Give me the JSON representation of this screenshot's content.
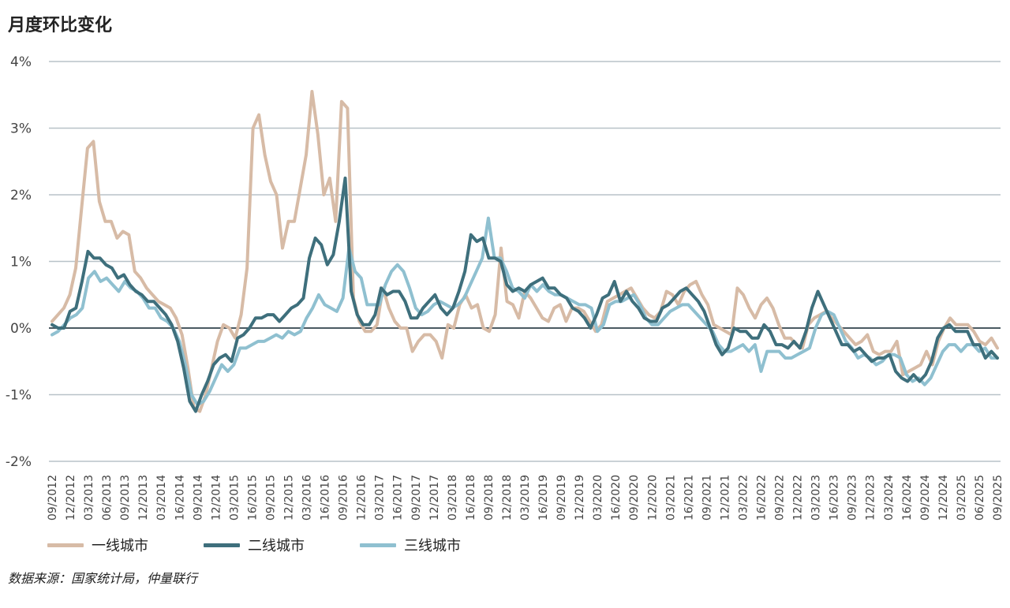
{
  "title": "月度环比变化",
  "source": "数据来源：国家统计局，仲量联行",
  "colors": {
    "grid": "#b8c2c8",
    "zero": "#4a5a62",
    "tier1": "#d7bba6",
    "tier2": "#3e6f7c",
    "tier3": "#8fc0d0"
  },
  "chart_data": {
    "type": "line",
    "title": "月度环比变化",
    "ylim": [
      -2,
      4
    ],
    "yticks": [
      -2,
      -1,
      0,
      1,
      2,
      3,
      4
    ],
    "ytick_labels": [
      "-2%",
      "-1%",
      "0%",
      "1%",
      "2%",
      "3%",
      "4%"
    ],
    "grid": "horizontal",
    "legend_position": "bottom",
    "xtick_labels": [
      "09/2012",
      "12/2012",
      "03/2013",
      "06/2013",
      "09/2013",
      "12/2013",
      "03/2014",
      "16/2014",
      "09/2014",
      "12/2014",
      "03/2015",
      "16/2015",
      "09/2015",
      "12/2015",
      "03/2016",
      "16/2016",
      "09/2016",
      "12/2016",
      "03/2017",
      "16/2017",
      "09/2017",
      "12/2017",
      "03/2018",
      "16/2018",
      "09/2018",
      "12/2018",
      "03/2019",
      "16/2019",
      "09/2019",
      "12/2019",
      "03/2020",
      "16/2020",
      "09/2020",
      "12/2020",
      "03/2021",
      "16/2021",
      "09/2021",
      "12/2021",
      "03/2022",
      "16/2022",
      "09/2022",
      "12/2022",
      "03/2023",
      "16/2023",
      "09/2023",
      "12/2023",
      "03/2024",
      "16/2024",
      "09/2024",
      "12/2024",
      "03/2025",
      "06/2025",
      "09/2025"
    ],
    "series": [
      {
        "name": "一线城市",
        "color": "#d7bba6",
        "values": [
          0.1,
          0.2,
          0.3,
          0.5,
          0.9,
          1.8,
          2.7,
          2.8,
          1.9,
          1.6,
          1.6,
          1.35,
          1.45,
          1.4,
          0.85,
          0.75,
          0.6,
          0.5,
          0.4,
          0.35,
          0.3,
          0.15,
          -0.1,
          -0.6,
          -1.2,
          -1.25,
          -1.0,
          -0.6,
          -0.2,
          0.05,
          0.0,
          -0.15,
          0.2,
          0.9,
          3.0,
          3.2,
          2.6,
          2.2,
          2.0,
          1.2,
          1.6,
          1.6,
          2.1,
          2.6,
          3.55,
          2.9,
          2.0,
          2.25,
          1.6,
          3.4,
          3.3,
          0.45,
          0.1,
          -0.05,
          -0.05,
          0.05,
          0.6,
          0.3,
          0.1,
          0.0,
          0.0,
          -0.35,
          -0.2,
          -0.1,
          -0.1,
          -0.2,
          -0.45,
          0.05,
          0.0,
          0.35,
          0.5,
          0.3,
          0.35,
          0.0,
          -0.05,
          0.2,
          1.2,
          0.4,
          0.35,
          0.15,
          0.55,
          0.45,
          0.3,
          0.15,
          0.1,
          0.3,
          0.35,
          0.1,
          0.3,
          0.3,
          0.25,
          0.1,
          -0.05,
          0.05,
          0.4,
          0.45,
          0.5,
          0.55,
          0.6,
          0.45,
          0.3,
          0.2,
          0.15,
          0.25,
          0.55,
          0.5,
          0.35,
          0.55,
          0.65,
          0.7,
          0.5,
          0.35,
          0.05,
          0.0,
          -0.05,
          -0.1,
          0.6,
          0.5,
          0.3,
          0.15,
          0.35,
          0.45,
          0.3,
          0.05,
          -0.15,
          -0.15,
          -0.25,
          -0.3,
          0.05,
          0.15,
          0.2,
          0.25,
          0.15,
          0.05,
          -0.05,
          -0.15,
          -0.25,
          -0.2,
          -0.1,
          -0.35,
          -0.4,
          -0.35,
          -0.35,
          -0.2,
          -0.7,
          -0.65,
          -0.6,
          -0.55,
          -0.35,
          -0.55,
          -0.2,
          0.0,
          0.15,
          0.05,
          0.05,
          0.05,
          -0.05,
          -0.2,
          -0.25,
          -0.15,
          -0.3
        ]
      },
      {
        "name": "二线城市",
        "color": "#3e6f7c",
        "values": [
          0.05,
          0.0,
          0.0,
          0.25,
          0.3,
          0.7,
          1.15,
          1.05,
          1.05,
          0.95,
          0.9,
          0.75,
          0.8,
          0.65,
          0.55,
          0.5,
          0.4,
          0.4,
          0.3,
          0.2,
          0.05,
          -0.2,
          -0.6,
          -1.1,
          -1.25,
          -1.0,
          -0.8,
          -0.55,
          -0.45,
          -0.4,
          -0.5,
          -0.15,
          -0.1,
          0.0,
          0.15,
          0.15,
          0.2,
          0.2,
          0.1,
          0.2,
          0.3,
          0.35,
          0.45,
          1.05,
          1.35,
          1.25,
          0.95,
          1.1,
          1.6,
          2.25,
          0.55,
          0.2,
          0.05,
          0.05,
          0.2,
          0.6,
          0.5,
          0.55,
          0.55,
          0.4,
          0.15,
          0.15,
          0.3,
          0.4,
          0.5,
          0.3,
          0.2,
          0.3,
          0.55,
          0.85,
          1.4,
          1.3,
          1.35,
          1.05,
          1.05,
          1.0,
          0.65,
          0.55,
          0.6,
          0.55,
          0.65,
          0.7,
          0.75,
          0.6,
          0.6,
          0.5,
          0.45,
          0.3,
          0.25,
          0.15,
          0.0,
          0.2,
          0.45,
          0.5,
          0.7,
          0.4,
          0.55,
          0.4,
          0.3,
          0.15,
          0.1,
          0.1,
          0.3,
          0.35,
          0.45,
          0.55,
          0.6,
          0.5,
          0.4,
          0.25,
          0.0,
          -0.25,
          -0.4,
          -0.3,
          0.0,
          -0.05,
          -0.05,
          -0.15,
          -0.15,
          0.05,
          -0.05,
          -0.25,
          -0.25,
          -0.3,
          -0.2,
          -0.3,
          -0.05,
          0.3,
          0.55,
          0.35,
          0.15,
          -0.05,
          -0.25,
          -0.25,
          -0.35,
          -0.3,
          -0.4,
          -0.5,
          -0.45,
          -0.45,
          -0.4,
          -0.65,
          -0.75,
          -0.8,
          -0.7,
          -0.8,
          -0.7,
          -0.5,
          -0.15,
          0.0,
          0.05,
          -0.05,
          -0.05,
          -0.05,
          -0.25,
          -0.25,
          -0.45,
          -0.35,
          -0.45
        ]
      },
      {
        "name": "三线城市",
        "color": "#8fc0d0",
        "values": [
          -0.1,
          -0.05,
          0.05,
          0.15,
          0.2,
          0.3,
          0.75,
          0.85,
          0.7,
          0.75,
          0.65,
          0.55,
          0.7,
          0.6,
          0.55,
          0.45,
          0.3,
          0.3,
          0.15,
          0.1,
          0.0,
          -0.2,
          -0.55,
          -1.0,
          -1.15,
          -1.1,
          -0.95,
          -0.75,
          -0.55,
          -0.65,
          -0.55,
          -0.3,
          -0.3,
          -0.25,
          -0.2,
          -0.2,
          -0.15,
          -0.1,
          -0.15,
          -0.05,
          -0.1,
          -0.05,
          0.15,
          0.3,
          0.5,
          0.35,
          0.3,
          0.25,
          0.45,
          1.2,
          0.85,
          0.75,
          0.35,
          0.35,
          0.35,
          0.65,
          0.85,
          0.95,
          0.85,
          0.6,
          0.3,
          0.2,
          0.25,
          0.35,
          0.4,
          0.35,
          0.3,
          0.35,
          0.45,
          0.65,
          0.85,
          1.05,
          1.65,
          1.05,
          1.05,
          0.85,
          0.6,
          0.55,
          0.45,
          0.65,
          0.55,
          0.65,
          0.55,
          0.5,
          0.5,
          0.45,
          0.4,
          0.35,
          0.35,
          0.3,
          -0.05,
          0.05,
          0.35,
          0.4,
          0.4,
          0.45,
          0.5,
          0.35,
          0.15,
          0.05,
          0.05,
          0.15,
          0.25,
          0.3,
          0.35,
          0.35,
          0.25,
          0.15,
          0.05,
          -0.05,
          -0.25,
          -0.35,
          -0.35,
          -0.3,
          -0.25,
          -0.35,
          -0.25,
          -0.65,
          -0.35,
          -0.35,
          -0.35,
          -0.45,
          -0.45,
          -0.4,
          -0.35,
          -0.3,
          0.0,
          0.2,
          0.25,
          0.2,
          0.0,
          -0.2,
          -0.3,
          -0.45,
          -0.4,
          -0.45,
          -0.55,
          -0.5,
          -0.4,
          -0.4,
          -0.45,
          -0.7,
          -0.8,
          -0.75,
          -0.85,
          -0.75,
          -0.55,
          -0.35,
          -0.25,
          -0.25,
          -0.35,
          -0.25,
          -0.25,
          -0.35,
          -0.3,
          -0.45,
          -0.45
        ]
      }
    ]
  }
}
